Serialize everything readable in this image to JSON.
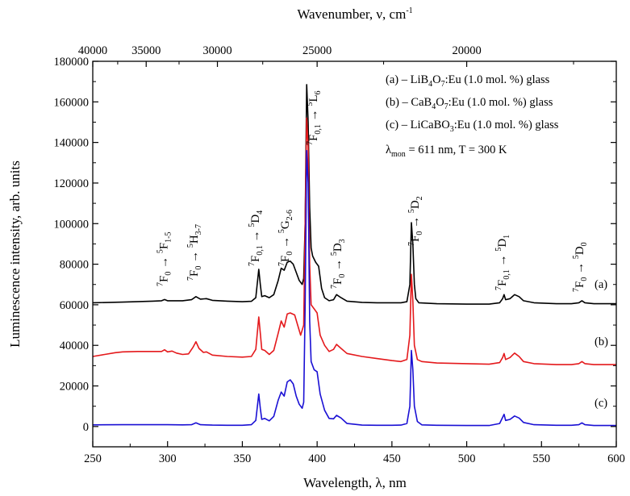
{
  "chart_data": {
    "type": "line",
    "xlabel": "Wavelength, λ, nm",
    "ylabel": "Luminescence intensity, arb. units",
    "x2label_main": "Wavenumber, ν, cm",
    "x2label_exp": "-1",
    "xlim": [
      250,
      600
    ],
    "ylim": [
      -10000,
      180000
    ],
    "x_ticks": [
      250,
      300,
      350,
      400,
      450,
      500,
      550,
      600
    ],
    "y_ticks": [
      0,
      20000,
      40000,
      60000,
      80000,
      100000,
      120000,
      140000,
      160000,
      180000
    ],
    "x2_ticks": [
      40000,
      35000,
      30000,
      25000,
      20000
    ],
    "legend": [
      {
        "pre": "(a) – LiB",
        "s1": "4",
        "mid": "O",
        "s2": "7",
        "post": ":Eu (1.0 mol. %) glass"
      },
      {
        "pre": "(b) – CaB",
        "s1": "4",
        "mid": "O",
        "s2": "7",
        "post": ":Eu (1.0 mol. %) glass"
      },
      {
        "pre": "(c) – LiCaBO",
        "s1": "3",
        "mid": "",
        "s2": "",
        "post": ":Eu (1.0 mol. %) glass"
      }
    ],
    "condition": {
      "lambda": "λ",
      "sub": "mon",
      "text": " = 611 nm, T = 300 K"
    },
    "transitions": [
      {
        "lead": "7",
        "F": "F",
        "Fsub": "0",
        "arrow": " → ",
        "tsup": "5",
        "T": "F",
        "tsub": "1-5",
        "x": 300
      },
      {
        "lead": "7",
        "F": "F",
        "Fsub": "0",
        "arrow": " → ",
        "tsup": "5",
        "T": "H",
        "tsub": "3-7",
        "x": 320
      },
      {
        "lead": "7",
        "F": "F",
        "Fsub": "0,1",
        "arrow": " → ",
        "tsup": "5",
        "T": "D",
        "tsub": "4",
        "x": 361
      },
      {
        "lead": "7",
        "F": "F",
        "Fsub": "0",
        "arrow": " → ",
        "tsup": "5",
        "T": "G",
        "tsub": "2-6",
        "x": 381
      },
      {
        "lead": "7",
        "F": "F",
        "Fsub": "0,1",
        "arrow": " → ",
        "tsup": "5",
        "T": "L",
        "tsub": "6",
        "x": 400
      },
      {
        "lead": "7",
        "F": "F",
        "Fsub": "0",
        "arrow": " → ",
        "tsup": "5",
        "T": "D",
        "tsub": "3",
        "x": 416
      },
      {
        "lead": "7",
        "F": "F",
        "Fsub": "0",
        "arrow": " → ",
        "tsup": "5",
        "T": "D",
        "tsub": "2",
        "x": 468
      },
      {
        "lead": "7",
        "F": "F",
        "Fsub": "0,1",
        "arrow": " → ",
        "tsup": "5",
        "T": "D",
        "tsub": "1",
        "x": 526
      },
      {
        "lead": "7",
        "F": "F",
        "Fsub": "0",
        "arrow": " → ",
        "tsup": "5",
        "T": "D",
        "tsub": "0",
        "x": 578
      }
    ],
    "series": [
      {
        "label": "(a)",
        "color": "#000000",
        "points": [
          [
            250,
            61000
          ],
          [
            270,
            61300
          ],
          [
            290,
            61800
          ],
          [
            296,
            62000
          ],
          [
            298,
            62600
          ],
          [
            300,
            62000
          ],
          [
            310,
            62000
          ],
          [
            316,
            62500
          ],
          [
            319,
            64000
          ],
          [
            322,
            62800
          ],
          [
            326,
            63000
          ],
          [
            330,
            62200
          ],
          [
            340,
            61800
          ],
          [
            350,
            61500
          ],
          [
            356,
            61700
          ],
          [
            359,
            63500
          ],
          [
            361,
            77500
          ],
          [
            362,
            70000
          ],
          [
            363,
            64000
          ],
          [
            365,
            64500
          ],
          [
            368,
            63500
          ],
          [
            371,
            65000
          ],
          [
            374,
            72000
          ],
          [
            376,
            78000
          ],
          [
            378,
            77000
          ],
          [
            380,
            81000
          ],
          [
            382,
            81500
          ],
          [
            384,
            80000
          ],
          [
            386,
            76000
          ],
          [
            388,
            72000
          ],
          [
            390,
            70000
          ],
          [
            391,
            73000
          ],
          [
            392,
            100000
          ],
          [
            393,
            168500
          ],
          [
            394,
            150000
          ],
          [
            395,
            108000
          ],
          [
            396,
            88000
          ],
          [
            397,
            84000
          ],
          [
            399,
            81000
          ],
          [
            401,
            79000
          ],
          [
            403,
            68000
          ],
          [
            405,
            63500
          ],
          [
            408,
            62000
          ],
          [
            411,
            62500
          ],
          [
            413,
            65000
          ],
          [
            416,
            63500
          ],
          [
            420,
            61800
          ],
          [
            430,
            61200
          ],
          [
            440,
            61000
          ],
          [
            450,
            61000
          ],
          [
            456,
            61000
          ],
          [
            460,
            61500
          ],
          [
            462,
            70000
          ],
          [
            463,
            100500
          ],
          [
            464,
            90000
          ],
          [
            465,
            70000
          ],
          [
            466,
            63000
          ],
          [
            468,
            61000
          ],
          [
            480,
            60500
          ],
          [
            500,
            60300
          ],
          [
            515,
            60300
          ],
          [
            522,
            61000
          ],
          [
            524,
            63000
          ],
          [
            525,
            65000
          ],
          [
            526,
            62500
          ],
          [
            529,
            63000
          ],
          [
            532,
            65000
          ],
          [
            535,
            64000
          ],
          [
            538,
            62000
          ],
          [
            545,
            61000
          ],
          [
            560,
            60500
          ],
          [
            570,
            60500
          ],
          [
            575,
            61000
          ],
          [
            577,
            62000
          ],
          [
            579,
            61000
          ],
          [
            585,
            60500
          ],
          [
            600,
            60500
          ]
        ]
      },
      {
        "label": "(b)",
        "color": "#e4191c",
        "points": [
          [
            250,
            34500
          ],
          [
            258,
            35500
          ],
          [
            265,
            36400
          ],
          [
            270,
            36800
          ],
          [
            280,
            37000
          ],
          [
            290,
            37000
          ],
          [
            296,
            37000
          ],
          [
            298,
            37800
          ],
          [
            300,
            36800
          ],
          [
            303,
            37200
          ],
          [
            306,
            36200
          ],
          [
            310,
            35500
          ],
          [
            314,
            35800
          ],
          [
            317,
            39000
          ],
          [
            319,
            41800
          ],
          [
            321,
            38500
          ],
          [
            324,
            36500
          ],
          [
            326,
            36800
          ],
          [
            330,
            35200
          ],
          [
            340,
            34500
          ],
          [
            350,
            34200
          ],
          [
            356,
            34500
          ],
          [
            359,
            38000
          ],
          [
            361,
            54000
          ],
          [
            362,
            46000
          ],
          [
            363,
            38000
          ],
          [
            365,
            37500
          ],
          [
            368,
            35500
          ],
          [
            371,
            37500
          ],
          [
            374,
            46000
          ],
          [
            376,
            52000
          ],
          [
            378,
            49000
          ],
          [
            380,
            55500
          ],
          [
            382,
            56000
          ],
          [
            385,
            55000
          ],
          [
            387,
            50000
          ],
          [
            389,
            45000
          ],
          [
            391,
            50000
          ],
          [
            392,
            100000
          ],
          [
            393,
            152000
          ],
          [
            394,
            138000
          ],
          [
            395,
            80000
          ],
          [
            396,
            60000
          ],
          [
            398,
            58000
          ],
          [
            400,
            56000
          ],
          [
            402,
            45000
          ],
          [
            405,
            40000
          ],
          [
            408,
            37000
          ],
          [
            411,
            38000
          ],
          [
            413,
            40500
          ],
          [
            416,
            38500
          ],
          [
            420,
            36000
          ],
          [
            430,
            34500
          ],
          [
            440,
            33500
          ],
          [
            450,
            32500
          ],
          [
            456,
            32000
          ],
          [
            460,
            33000
          ],
          [
            462,
            45000
          ],
          [
            463,
            75000
          ],
          [
            464,
            62000
          ],
          [
            465,
            40000
          ],
          [
            467,
            33000
          ],
          [
            470,
            32000
          ],
          [
            480,
            31300
          ],
          [
            500,
            31000
          ],
          [
            515,
            30700
          ],
          [
            522,
            31500
          ],
          [
            524,
            34000
          ],
          [
            525,
            36000
          ],
          [
            526,
            33000
          ],
          [
            529,
            34000
          ],
          [
            532,
            36200
          ],
          [
            535,
            34500
          ],
          [
            538,
            32000
          ],
          [
            545,
            31000
          ],
          [
            560,
            30500
          ],
          [
            570,
            30500
          ],
          [
            575,
            31000
          ],
          [
            577,
            32000
          ],
          [
            579,
            31000
          ],
          [
            585,
            30500
          ],
          [
            600,
            30500
          ]
        ]
      },
      {
        "label": "(c)",
        "color": "#1a10d4",
        "points": [
          [
            250,
            800
          ],
          [
            270,
            900
          ],
          [
            290,
            900
          ],
          [
            300,
            900
          ],
          [
            310,
            800
          ],
          [
            316,
            900
          ],
          [
            319,
            1800
          ],
          [
            322,
            900
          ],
          [
            330,
            700
          ],
          [
            340,
            600
          ],
          [
            350,
            600
          ],
          [
            356,
            900
          ],
          [
            359,
            3000
          ],
          [
            361,
            16000
          ],
          [
            362,
            9000
          ],
          [
            363,
            3500
          ],
          [
            365,
            4000
          ],
          [
            368,
            2800
          ],
          [
            371,
            5000
          ],
          [
            374,
            13000
          ],
          [
            376,
            17000
          ],
          [
            378,
            15000
          ],
          [
            380,
            22000
          ],
          [
            382,
            23000
          ],
          [
            384,
            21000
          ],
          [
            386,
            15000
          ],
          [
            388,
            11000
          ],
          [
            390,
            9000
          ],
          [
            391,
            12000
          ],
          [
            392,
            60000
          ],
          [
            393,
            136000
          ],
          [
            394,
            120000
          ],
          [
            395,
            52000
          ],
          [
            396,
            32000
          ],
          [
            398,
            28000
          ],
          [
            400,
            27000
          ],
          [
            402,
            16000
          ],
          [
            405,
            8000
          ],
          [
            408,
            4000
          ],
          [
            411,
            3800
          ],
          [
            413,
            5500
          ],
          [
            416,
            4200
          ],
          [
            420,
            1500
          ],
          [
            430,
            700
          ],
          [
            440,
            600
          ],
          [
            450,
            600
          ],
          [
            456,
            700
          ],
          [
            460,
            1500
          ],
          [
            462,
            10000
          ],
          [
            463,
            37500
          ],
          [
            464,
            28000
          ],
          [
            465,
            10000
          ],
          [
            467,
            2500
          ],
          [
            470,
            800
          ],
          [
            480,
            600
          ],
          [
            500,
            500
          ],
          [
            515,
            500
          ],
          [
            522,
            1500
          ],
          [
            524,
            4500
          ],
          [
            525,
            6000
          ],
          [
            526,
            3000
          ],
          [
            529,
            3500
          ],
          [
            532,
            5200
          ],
          [
            535,
            4200
          ],
          [
            538,
            2000
          ],
          [
            545,
            900
          ],
          [
            560,
            600
          ],
          [
            570,
            600
          ],
          [
            575,
            900
          ],
          [
            577,
            1800
          ],
          [
            579,
            900
          ],
          [
            585,
            500
          ],
          [
            600,
            500
          ]
        ]
      }
    ]
  }
}
